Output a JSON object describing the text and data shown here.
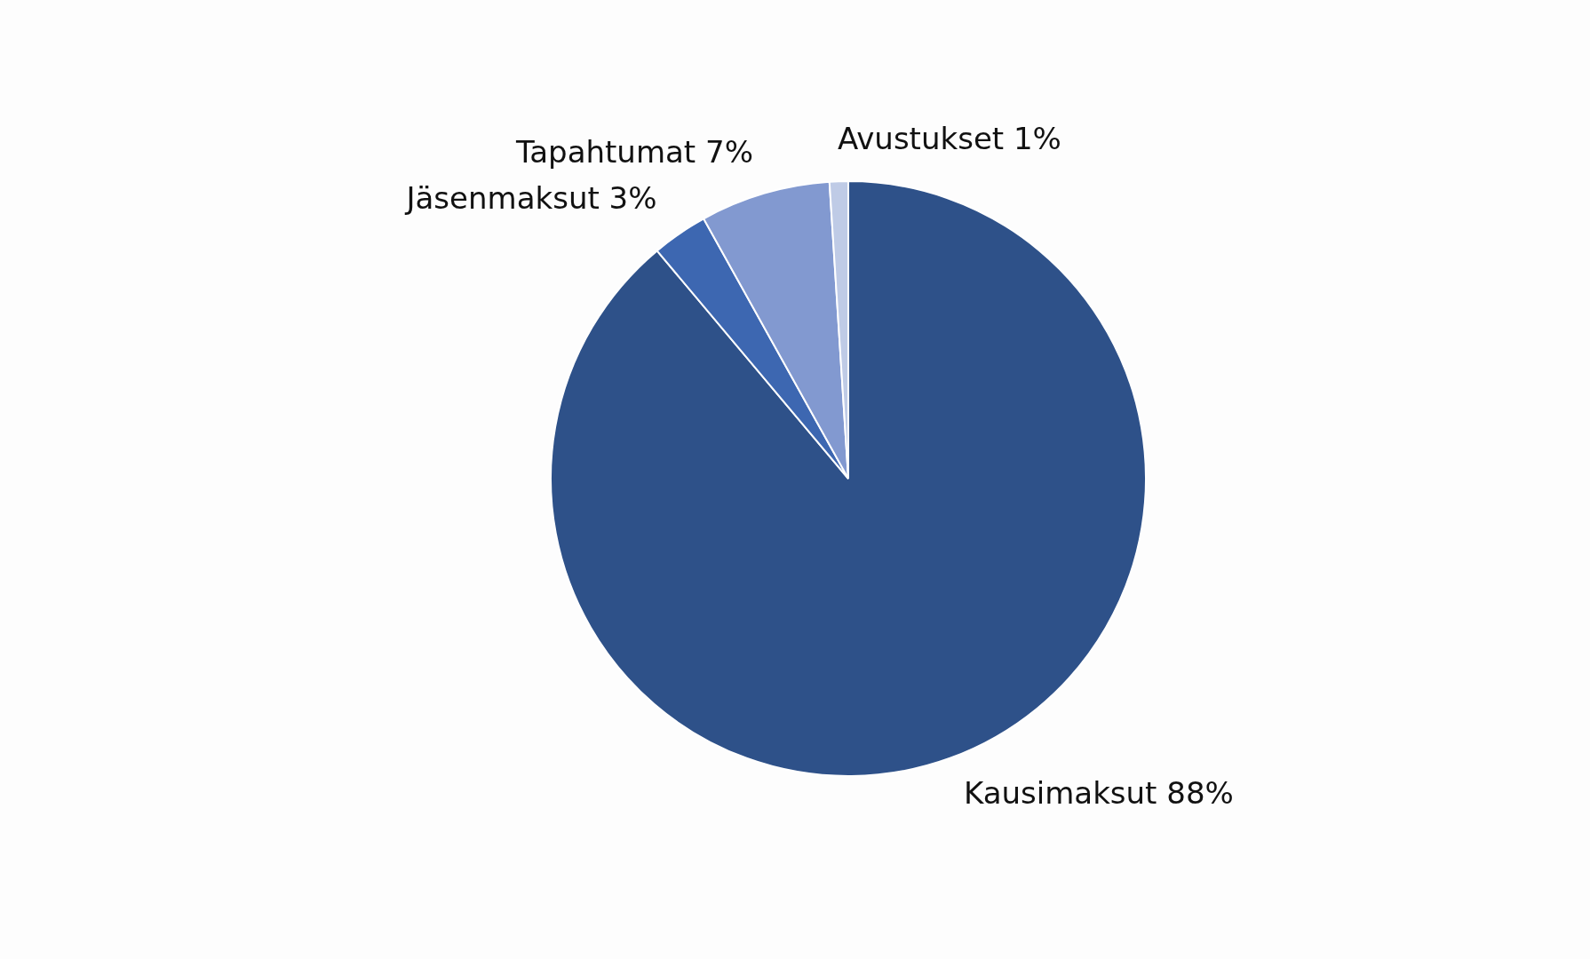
{
  "chart_data": {
    "type": "pie",
    "categories": [
      "Kausimaksut",
      "Jäsenmaksut",
      "Tapahtumat",
      "Avustukset"
    ],
    "values": [
      88,
      3,
      7,
      1
    ],
    "value_labels": [
      "88%",
      "3%",
      "7%",
      "1%"
    ],
    "colors": [
      "#2e5189",
      "#3d67b1",
      "#8299d0",
      "#bfcbe6"
    ],
    "legend": false
  }
}
